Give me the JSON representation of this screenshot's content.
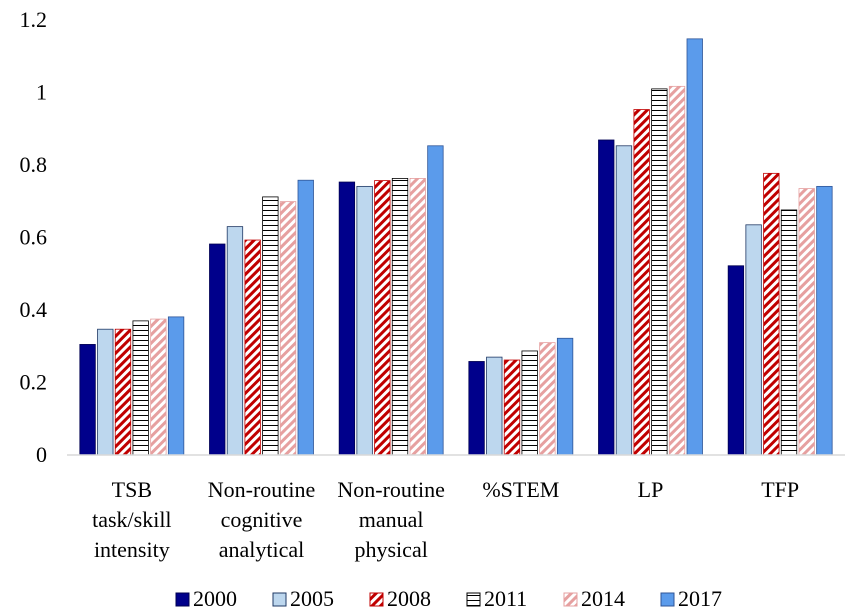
{
  "chart_data": {
    "type": "bar",
    "title": "",
    "xlabel": "",
    "ylabel": "",
    "ylim": [
      0,
      1.2
    ],
    "yticks": [
      "0",
      "0.2",
      "0.4",
      "0.6",
      "0.8",
      "1",
      "1.2"
    ],
    "grid": false,
    "legend_position": "bottom",
    "categories": [
      [
        "TSB",
        "task/skill",
        "intensity"
      ],
      [
        "Non-routine",
        "cognitive",
        "analytical"
      ],
      [
        "Non-routine",
        "manual",
        "physical"
      ],
      [
        "%STEM"
      ],
      [
        "LP"
      ],
      [
        "TFP"
      ]
    ],
    "series": [
      {
        "name": "2000",
        "values": [
          0.305,
          0.582,
          0.753,
          0.258,
          0.869,
          0.522
        ],
        "color": "#00008B",
        "pattern": "solid"
      },
      {
        "name": "2005",
        "values": [
          0.347,
          0.63,
          0.741,
          0.27,
          0.853,
          0.635
        ],
        "color": "#BDD7EE",
        "pattern": "solid"
      },
      {
        "name": "2008",
        "values": [
          0.347,
          0.593,
          0.757,
          0.262,
          0.953,
          0.777
        ],
        "color": "#C00000",
        "pattern": "diagonal"
      },
      {
        "name": "2011",
        "values": [
          0.37,
          0.712,
          0.763,
          0.287,
          1.01,
          0.676
        ],
        "color": "#000000",
        "pattern": "horizontal"
      },
      {
        "name": "2014",
        "values": [
          0.375,
          0.699,
          0.763,
          0.31,
          1.017,
          0.735
        ],
        "color": "#E6A0A0",
        "pattern": "diagonal-light"
      },
      {
        "name": "2017",
        "values": [
          0.381,
          0.758,
          0.853,
          0.322,
          1.148,
          0.741
        ],
        "color": "#5B9BEB",
        "pattern": "solid"
      }
    ]
  }
}
